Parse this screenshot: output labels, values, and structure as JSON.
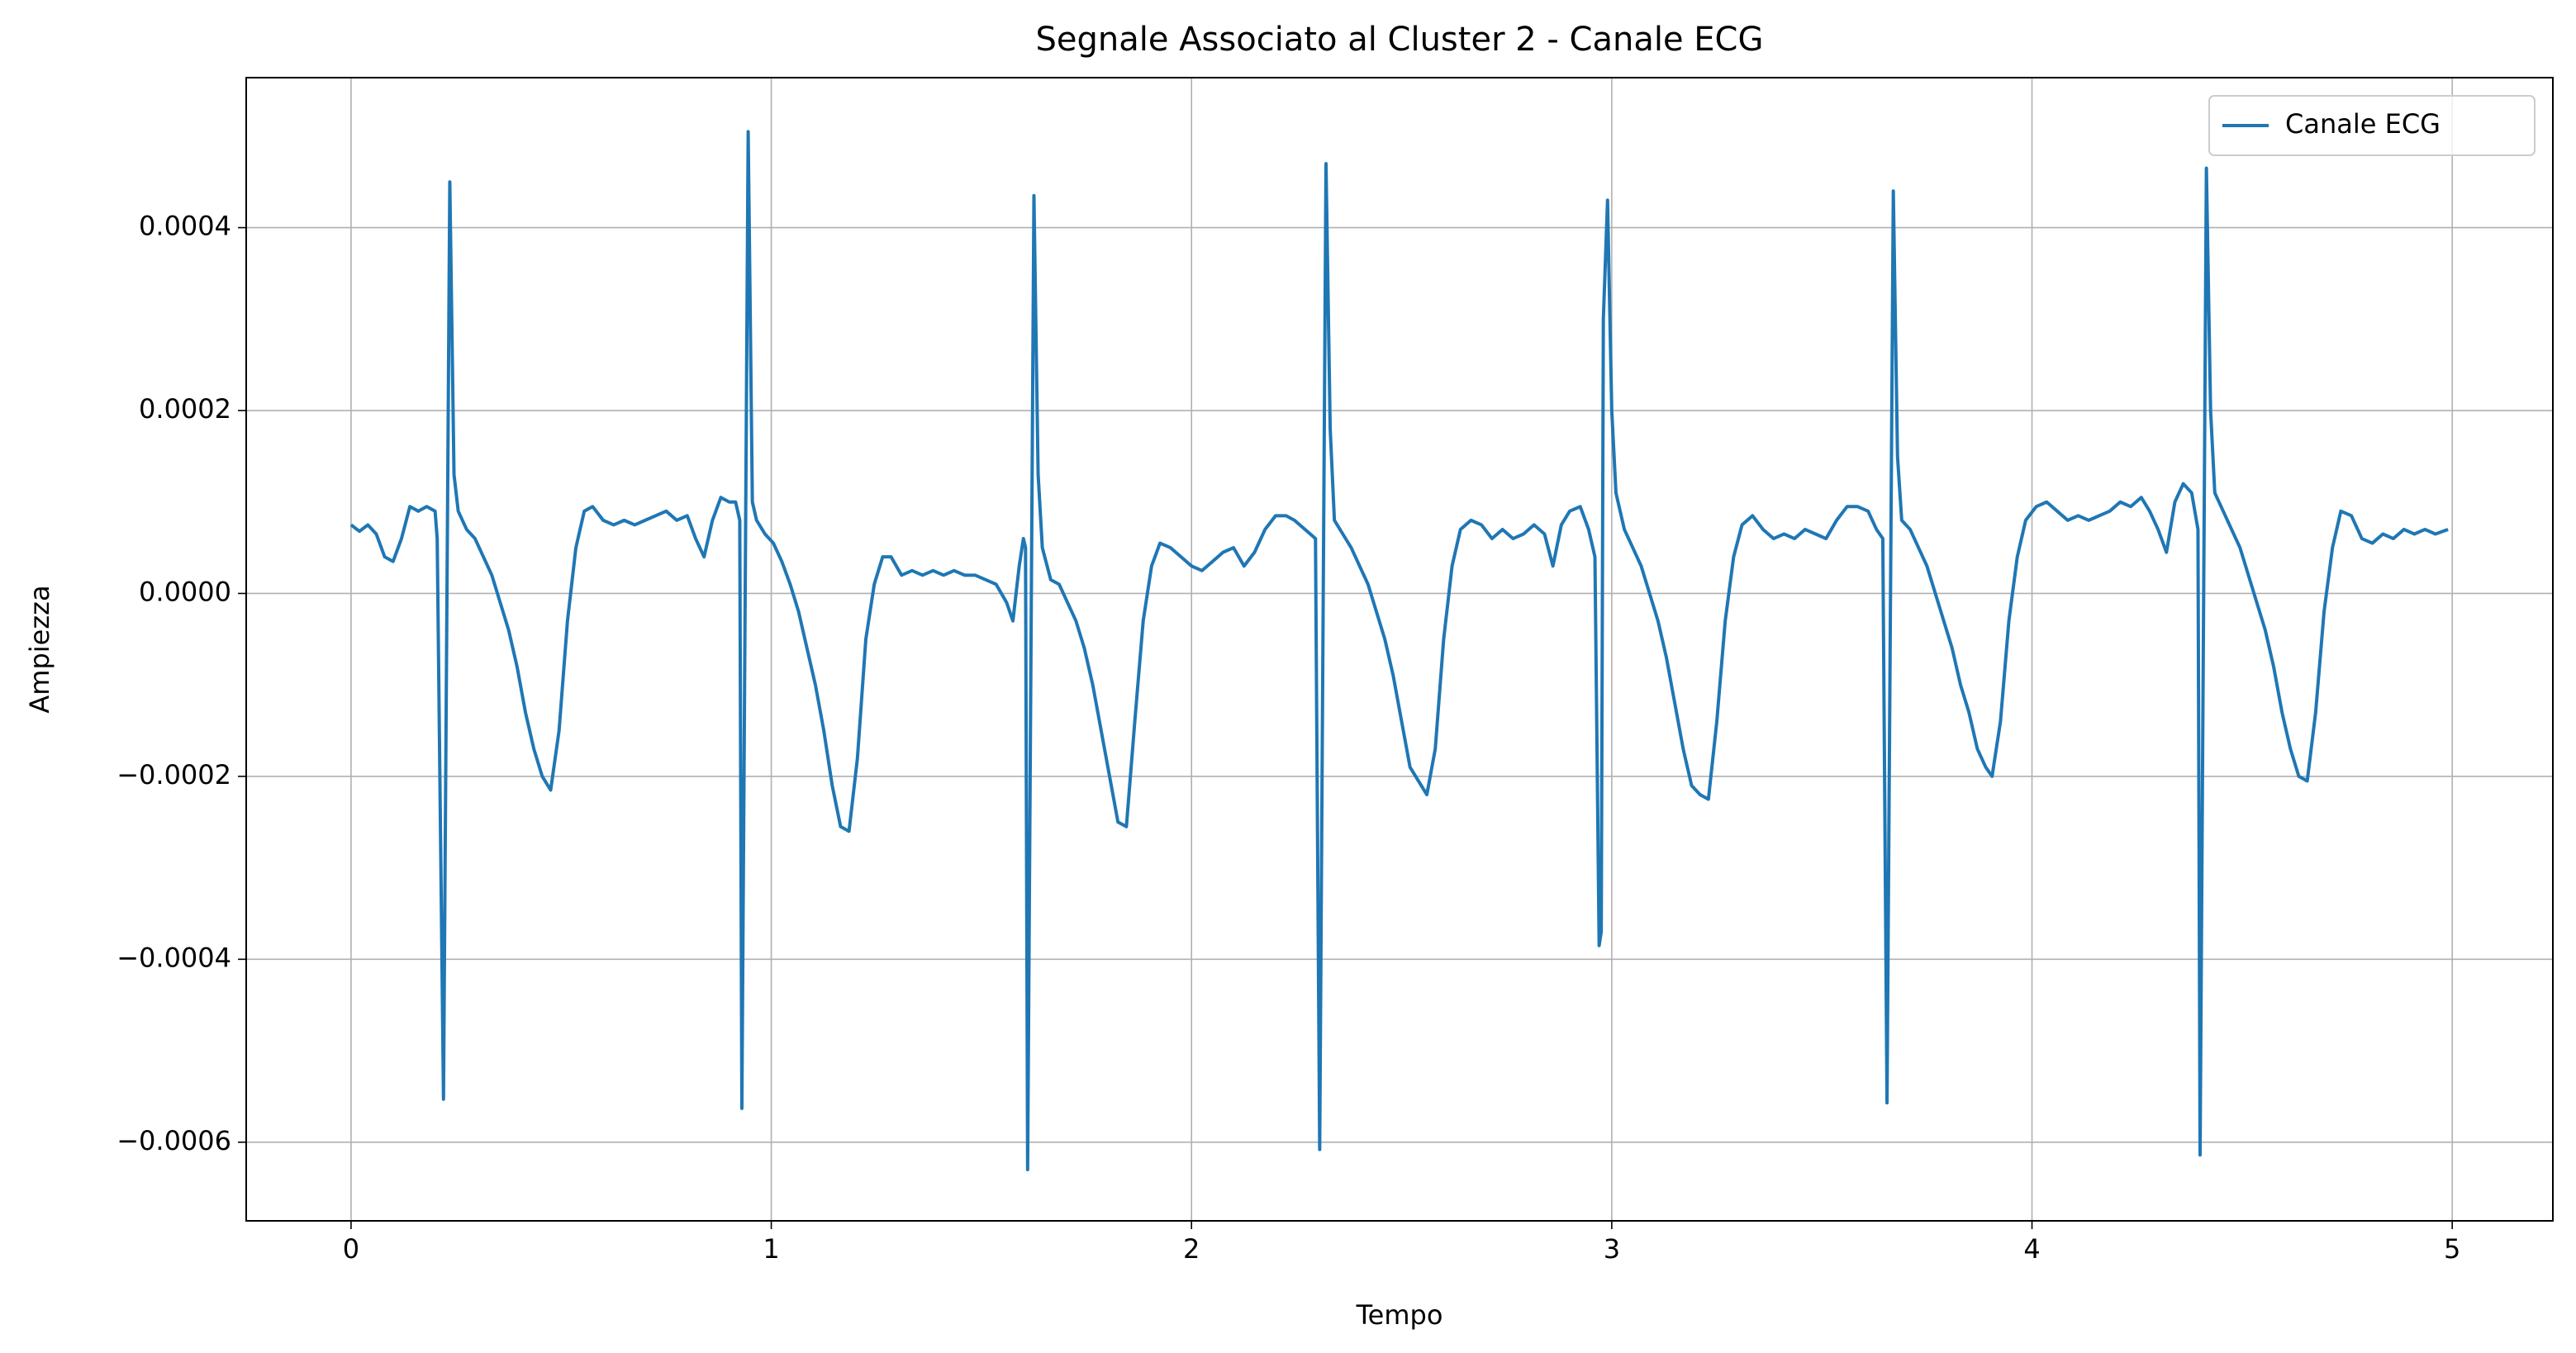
{
  "chart_data": {
    "type": "line",
    "title": "Segnale Associato al Cluster 2 - Canale ECG",
    "xlabel": "Tempo",
    "ylabel": "Ampiezza",
    "xlim": [
      -0.2495,
      5.2395
    ],
    "ylim": [
      -0.000686,
      0.000564
    ],
    "xticks": [
      0,
      1,
      2,
      3,
      4,
      5
    ],
    "yticks": [
      {
        "value": -0.0006,
        "label": "−0.0006"
      },
      {
        "value": -0.0004,
        "label": "−0.0004"
      },
      {
        "value": -0.0002,
        "label": "−0.0002"
      },
      {
        "value": 0,
        "label": "0.0000"
      },
      0.0002,
      0.0004
    ],
    "grid": true,
    "legend": "upper right",
    "x": [
      0,
      0.02,
      0.04,
      0.06,
      0.08,
      0.1,
      0.12,
      0.14,
      0.16,
      0.18,
      0.2,
      0.205,
      0.22,
      0.235,
      0.245,
      0.255,
      0.275,
      0.295,
      0.315,
      0.335,
      0.355,
      0.375,
      0.395,
      0.415,
      0.435,
      0.455,
      0.475,
      0.495,
      0.515,
      0.535,
      0.555,
      0.575,
      0.6,
      0.625,
      0.65,
      0.675,
      0.7,
      0.725,
      0.75,
      0.775,
      0.8,
      0.82,
      0.84,
      0.86,
      0.88,
      0.9,
      0.915,
      0.925,
      0.93,
      0.945,
      0.955,
      0.965,
      0.985,
      1.005,
      1.025,
      1.045,
      1.065,
      1.085,
      1.105,
      1.125,
      1.145,
      1.165,
      1.185,
      1.205,
      1.225,
      1.245,
      1.265,
      1.285,
      1.31,
      1.335,
      1.36,
      1.385,
      1.41,
      1.435,
      1.46,
      1.485,
      1.51,
      1.535,
      1.56,
      1.575,
      1.59,
      1.6,
      1.605,
      1.61,
      1.625,
      1.635,
      1.645,
      1.665,
      1.685,
      1.705,
      1.725,
      1.745,
      1.765,
      1.785,
      1.805,
      1.825,
      1.845,
      1.865,
      1.885,
      1.905,
      1.925,
      1.95,
      1.975,
      2.0,
      2.025,
      2.05,
      2.075,
      2.1,
      2.125,
      2.15,
      2.175,
      2.2,
      2.225,
      2.245,
      2.295,
      2.305,
      2.32,
      2.33,
      2.34,
      2.36,
      2.38,
      2.4,
      2.42,
      2.44,
      2.46,
      2.48,
      2.5,
      2.52,
      2.54,
      2.56,
      2.58,
      2.6,
      2.62,
      2.64,
      2.665,
      2.69,
      2.715,
      2.74,
      2.765,
      2.79,
      2.815,
      2.84,
      2.86,
      2.88,
      2.9,
      2.925,
      2.945,
      2.96,
      2.97,
      2.975,
      2.98,
      2.99,
      3.0,
      3.01,
      3.03,
      3.05,
      3.07,
      3.09,
      3.11,
      3.13,
      3.15,
      3.17,
      3.19,
      3.21,
      3.23,
      3.25,
      3.27,
      3.29,
      3.31,
      3.335,
      3.36,
      3.385,
      3.41,
      3.435,
      3.46,
      3.485,
      3.51,
      3.535,
      3.56,
      3.585,
      3.61,
      3.63,
      3.645,
      3.655,
      3.67,
      3.68,
      3.69,
      3.71,
      3.73,
      3.75,
      3.77,
      3.79,
      3.81,
      3.83,
      3.85,
      3.87,
      3.89,
      3.905,
      3.925,
      3.945,
      3.965,
      3.985,
      4.01,
      4.035,
      4.06,
      4.085,
      4.11,
      4.135,
      4.16,
      4.185,
      4.21,
      4.235,
      4.26,
      4.28,
      4.3,
      4.32,
      4.34,
      4.36,
      4.38,
      4.395,
      4.4,
      4.415,
      4.425,
      4.435,
      4.455,
      4.475,
      4.495,
      4.515,
      4.535,
      4.555,
      4.575,
      4.595,
      4.615,
      4.635,
      4.655,
      4.675,
      4.695,
      4.715,
      4.735,
      4.76,
      4.785,
      4.81,
      4.835,
      4.86,
      4.885,
      4.91,
      4.935,
      4.96,
      4.99
    ],
    "series": [
      {
        "name": "Canale ECG",
        "color": "#1f77b4",
        "values": [
          7.5e-05,
          6.8e-05,
          7.5e-05,
          6.5e-05,
          4e-05,
          3.5e-05,
          6e-05,
          9.5e-05,
          9e-05,
          9.5e-05,
          9e-05,
          6e-05,
          -0.000553,
          0.00045,
          0.00013,
          9e-05,
          7e-05,
          6e-05,
          4e-05,
          2e-05,
          -1e-05,
          -4e-05,
          -8e-05,
          -0.00013,
          -0.00017,
          -0.0002,
          -0.000215,
          -0.00015,
          -3e-05,
          5e-05,
          9e-05,
          9.5e-05,
          8e-05,
          7.5e-05,
          8e-05,
          7.5e-05,
          8e-05,
          8.5e-05,
          9e-05,
          8e-05,
          8.5e-05,
          6e-05,
          4e-05,
          8e-05,
          0.000105,
          0.0001,
          0.0001,
          8e-05,
          -0.000563,
          0.000505,
          0.0001,
          8e-05,
          6.5e-05,
          5.5e-05,
          3.5e-05,
          1e-05,
          -2e-05,
          -6e-05,
          -0.0001,
          -0.00015,
          -0.00021,
          -0.000255,
          -0.00026,
          -0.00018,
          -5e-05,
          1e-05,
          4e-05,
          4e-05,
          2e-05,
          2.5e-05,
          2e-05,
          2.5e-05,
          2e-05,
          2.5e-05,
          2e-05,
          2e-05,
          1.5e-05,
          1e-05,
          -1e-05,
          -3e-05,
          3e-05,
          6e-05,
          5e-05,
          -0.00063,
          0.000435,
          0.00013,
          5e-05,
          1.5e-05,
          1e-05,
          -1e-05,
          -3e-05,
          -6e-05,
          -0.0001,
          -0.00015,
          -0.0002,
          -0.00025,
          -0.000255,
          -0.00014,
          -3e-05,
          3e-05,
          5.5e-05,
          5e-05,
          4e-05,
          3e-05,
          2.5e-05,
          3.5e-05,
          4.5e-05,
          5e-05,
          3e-05,
          4.5e-05,
          7e-05,
          8.5e-05,
          8.5e-05,
          8e-05,
          6e-05,
          -0.000608,
          0.00047,
          0.00018,
          8e-05,
          6.5e-05,
          5e-05,
          3e-05,
          1e-05,
          -2e-05,
          -5e-05,
          -9e-05,
          -0.00014,
          -0.00019,
          -0.000205,
          -0.00022,
          -0.00017,
          -5e-05,
          3e-05,
          7e-05,
          8e-05,
          7.5e-05,
          6e-05,
          7e-05,
          6e-05,
          6.5e-05,
          7.5e-05,
          6.5e-05,
          3e-05,
          7.5e-05,
          9e-05,
          9.5e-05,
          7e-05,
          4e-05,
          -0.000385,
          -0.00037,
          0.0003,
          0.00043,
          0.0002,
          0.00011,
          7e-05,
          5e-05,
          3e-05,
          0,
          -3e-05,
          -7e-05,
          -0.00012,
          -0.00017,
          -0.00021,
          -0.00022,
          -0.000225,
          -0.00014,
          -3e-05,
          4e-05,
          7.5e-05,
          8.5e-05,
          7e-05,
          6e-05,
          6.5e-05,
          6e-05,
          7e-05,
          6.5e-05,
          6e-05,
          8e-05,
          9.5e-05,
          9.5e-05,
          9e-05,
          7e-05,
          6e-05,
          -0.000557,
          0.00044,
          0.00015,
          8e-05,
          7e-05,
          5e-05,
          3e-05,
          0,
          -3e-05,
          -6e-05,
          -0.0001,
          -0.00013,
          -0.00017,
          -0.00019,
          -0.0002,
          -0.00014,
          -3e-05,
          4e-05,
          8e-05,
          9.5e-05,
          0.0001,
          9e-05,
          8e-05,
          8.5e-05,
          8e-05,
          8.5e-05,
          9e-05,
          0.0001,
          9.5e-05,
          0.000105,
          9e-05,
          7e-05,
          4.5e-05,
          0.0001,
          0.00012,
          0.00011,
          7e-05,
          -0.000614,
          0.000465,
          0.0002,
          0.00011,
          9e-05,
          7e-05,
          5e-05,
          2e-05,
          -1e-05,
          -4e-05,
          -8e-05,
          -0.00013,
          -0.00017,
          -0.0002,
          -0.000205,
          -0.00013,
          -2e-05,
          5e-05,
          9e-05,
          8.5e-05,
          6e-05,
          5.5e-05,
          6.5e-05,
          6e-05,
          7e-05,
          6.5e-05,
          7e-05,
          6.5e-05,
          7e-05
        ]
      }
    ]
  }
}
